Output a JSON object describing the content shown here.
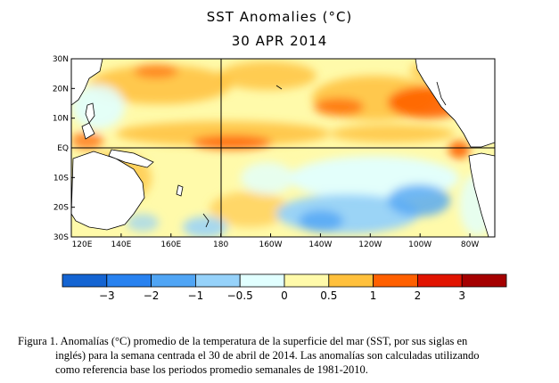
{
  "map": {
    "title": "SST Anomalies (°C)",
    "date": "30 APR 2014",
    "lat_ticks": [
      "30N",
      "20N",
      "10N",
      "EQ",
      "10S",
      "20S",
      "30S"
    ],
    "lon_ticks": [
      "120E",
      "140E",
      "160E",
      "180",
      "160W",
      "140W",
      "120W",
      "100W",
      "80W"
    ],
    "lat_range": [
      -30,
      30
    ],
    "lon_range": [
      120,
      290
    ],
    "reference_lines": [
      "EQ",
      "180"
    ]
  },
  "colorbar": {
    "labels": [
      "-3",
      "-2",
      "-1",
      "-0.5",
      "0",
      "0.5",
      "1",
      "2",
      "3"
    ],
    "colors": [
      "#1464d2",
      "#2882f0",
      "#50a5f5",
      "#96d2fa",
      "#e1ffff",
      "#fffaaa",
      "#ffc03c",
      "#ff6000",
      "#e11400",
      "#a50000"
    ]
  },
  "caption": {
    "line1": "Figura 1. Anomalías (°C) promedio de la temperatura de la superficie del mar (SST, por sus siglas en",
    "line2": "inglés) para la semana centrada el 30 de abril de 2014. Las anomalías son calculadas utilizando",
    "line3": "como referencia base los periodos promedio semanales de 1981-2010."
  }
}
